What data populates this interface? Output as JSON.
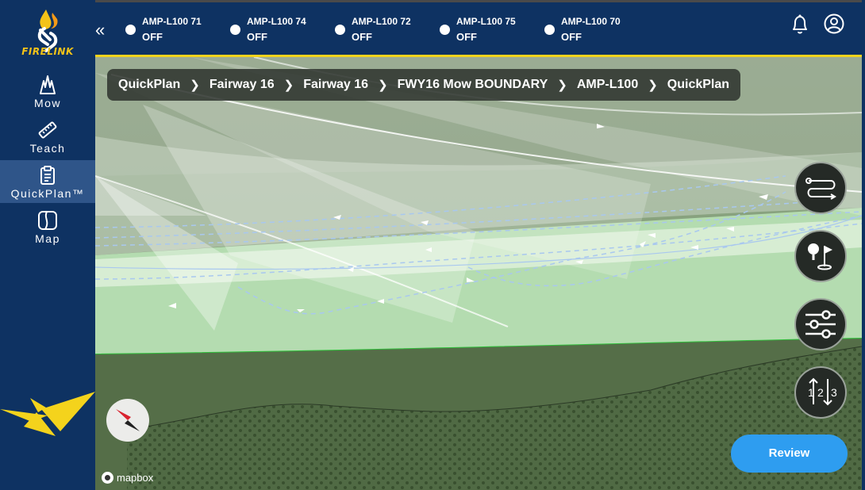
{
  "app": {
    "logo_text": "FIRELINK",
    "collapse_glyph": "«"
  },
  "sidebar": {
    "items": [
      {
        "label": "Mow",
        "icon": "grass-icon",
        "active": false
      },
      {
        "label": "Teach",
        "icon": "ruler-icon",
        "active": false
      },
      {
        "label": "QuickPlan™",
        "icon": "clipboard-icon",
        "active": true
      },
      {
        "label": "Map",
        "icon": "map-icon",
        "active": false
      }
    ]
  },
  "robots": [
    {
      "name": "AMP-L100 71",
      "status": "OFF"
    },
    {
      "name": "AMP-L100 74",
      "status": "OFF"
    },
    {
      "name": "AMP-L100 72",
      "status": "OFF"
    },
    {
      "name": "AMP-L100 75",
      "status": "OFF"
    },
    {
      "name": "AMP-L100 70",
      "status": "OFF"
    }
  ],
  "breadcrumb": [
    "QuickPlan",
    "Fairway 16",
    "Fairway 16",
    "FWY16 Mow BOUNDARY",
    "AMP-L100",
    "QuickPlan"
  ],
  "tools": [
    {
      "icon": "route-icon"
    },
    {
      "icon": "golf-flag-icon"
    },
    {
      "icon": "sliders-icon"
    },
    {
      "icon": "sort-order-icon",
      "digits": [
        "1",
        "2",
        "3"
      ]
    }
  ],
  "review_label": "Review",
  "attribution": "mapbox",
  "colors": {
    "navy": "#0e3262",
    "accent_yellow": "#f4d31c",
    "active_nav": "#2f5589",
    "review_blue": "#2e9df0",
    "map_green": "#7d9a72",
    "boundary_green": "#2fbf3a"
  }
}
